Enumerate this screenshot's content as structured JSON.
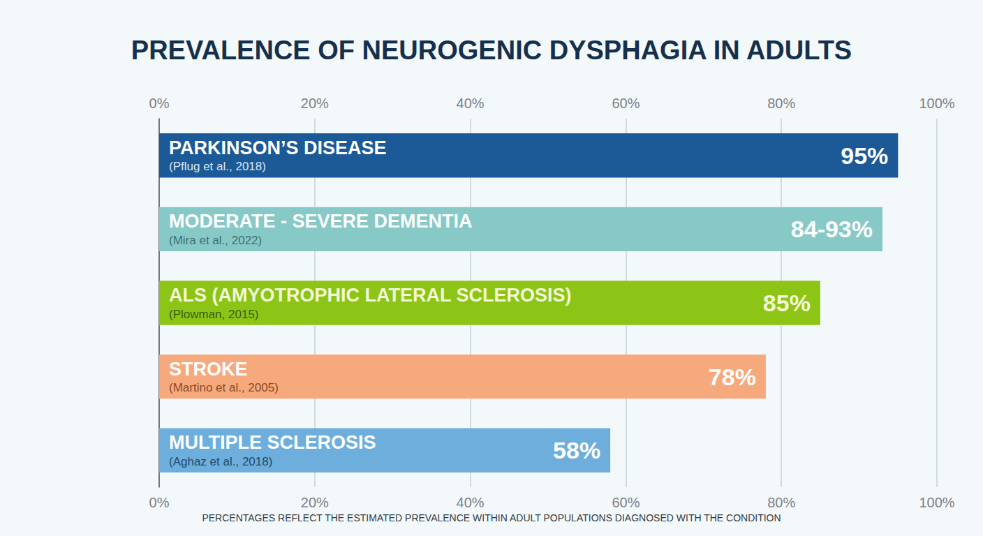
{
  "chart_data": {
    "type": "bar",
    "title": "PREVALENCE OF NEUROGENIC DYSPHAGIA IN ADULTS",
    "orientation": "horizontal",
    "categories": [
      "PARKINSON’S DISEASE",
      "MODERATE - SEVERE DEMENTIA",
      "ALS (AMYOTROPHIC LATERAL SCLEROSIS)",
      "STROKE",
      "MULTIPLE SCLEROSIS"
    ],
    "sources": [
      "(Pflug et al., 2018)",
      "(Mira et al., 2022)",
      "(Plowman, 2015)",
      "(Martino et al., 2005)",
      "(Aghaz et al., 2018)"
    ],
    "values": [
      95,
      93,
      85,
      78,
      58
    ],
    "value_labels": [
      "95%",
      "84-93%",
      "85%",
      "78%",
      "58%"
    ],
    "colors": [
      "#1b5a96",
      "#86c9c7",
      "#8cc516",
      "#f6a97c",
      "#6daedd"
    ],
    "xlim": [
      0,
      100
    ],
    "xticks": [
      {
        "value": 0,
        "label": "0%"
      },
      {
        "value": 20,
        "label": "20%"
      },
      {
        "value": 40,
        "label": "40%"
      },
      {
        "value": 60,
        "label": "60%"
      },
      {
        "value": 80,
        "label": "80%"
      },
      {
        "value": 100,
        "label": "100%"
      }
    ],
    "grid": true,
    "data_labels": true,
    "tick_labels": "x",
    "footnote": "PERCENTAGES REFLECT THE ESTIMATED PREVALENCE WITHIN ADULT POPULATIONS DIAGNOSED WITH THE CONDITION"
  }
}
